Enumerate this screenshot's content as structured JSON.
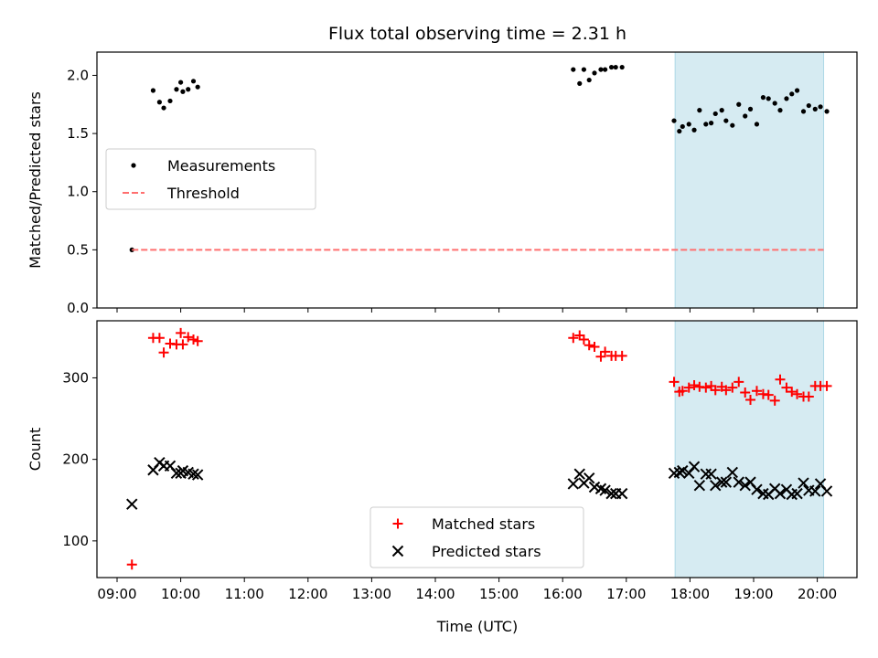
{
  "chart_data": {
    "title": "Flux total observing time = 2.31 h",
    "xlabel": "Time (UTC)",
    "x_ticks": [
      "09:00",
      "10:00",
      "11:00",
      "12:00",
      "13:00",
      "14:00",
      "15:00",
      "16:00",
      "17:00",
      "18:00",
      "19:00",
      "20:00"
    ],
    "shaded_span": {
      "start": "17:46",
      "end": "20:06",
      "color": "#add8e6"
    },
    "panels": [
      {
        "type": "scatter",
        "ylabel": "Matched/Predicted stars",
        "ylim": [
          0,
          2.2
        ],
        "y_ticks": [
          "0.0",
          "0.5",
          "1.0",
          "1.5",
          "2.0"
        ],
        "legend_position": "center-left",
        "series": [
          {
            "name": "Measurements",
            "marker": "dot",
            "color": "#000000",
            "x": [
              "09:14",
              "09:34",
              "09:40",
              "09:44",
              "09:50",
              "09:56",
              "10:00",
              "10:02",
              "10:07",
              "10:12",
              "10:16",
              "16:10",
              "16:16",
              "16:20",
              "16:25",
              "16:30",
              "16:36",
              "16:40",
              "16:46",
              "16:50",
              "16:56",
              "17:45",
              "17:50",
              "17:53",
              "17:59",
              "18:04",
              "18:09",
              "18:15",
              "18:20",
              "18:24",
              "18:30",
              "18:34",
              "18:40",
              "18:46",
              "18:52",
              "18:57",
              "19:03",
              "19:09",
              "19:14",
              "19:20",
              "19:25",
              "19:31",
              "19:36",
              "19:41",
              "19:47",
              "19:52",
              "19:58",
              "20:03",
              "20:09"
            ],
            "y": [
              0.5,
              1.87,
              1.77,
              1.72,
              1.78,
              1.88,
              1.94,
              1.86,
              1.88,
              1.95,
              1.9,
              2.05,
              1.93,
              2.05,
              1.96,
              2.02,
              2.05,
              2.05,
              2.07,
              2.07,
              2.07,
              1.61,
              1.52,
              1.56,
              1.58,
              1.53,
              1.7,
              1.58,
              1.59,
              1.67,
              1.7,
              1.61,
              1.57,
              1.75,
              1.65,
              1.71,
              1.58,
              1.81,
              1.8,
              1.76,
              1.7,
              1.8,
              1.84,
              1.87,
              1.69,
              1.74,
              1.71,
              1.73,
              1.69
            ]
          },
          {
            "name": "Threshold",
            "marker": "dashed-line",
            "color": "#ff6f6f",
            "x": [
              "09:14",
              "20:06"
            ],
            "y": [
              0.5,
              0.5
            ]
          }
        ]
      },
      {
        "type": "scatter",
        "ylabel": "Count",
        "ylim": [
          55,
          370
        ],
        "y_ticks": [
          "100",
          "200",
          "300"
        ],
        "legend_position": "lower-center",
        "series": [
          {
            "name": "Matched stars",
            "marker": "plus",
            "color": "#ff0000",
            "x": [
              "09:14",
              "09:34",
              "09:40",
              "09:44",
              "09:50",
              "09:56",
              "10:00",
              "10:02",
              "10:07",
              "10:12",
              "10:16",
              "16:10",
              "16:16",
              "16:20",
              "16:25",
              "16:30",
              "16:36",
              "16:40",
              "16:46",
              "16:50",
              "16:56",
              "17:45",
              "17:50",
              "17:53",
              "17:59",
              "18:04",
              "18:09",
              "18:15",
              "18:20",
              "18:24",
              "18:30",
              "18:34",
              "18:40",
              "18:46",
              "18:52",
              "18:57",
              "19:03",
              "19:09",
              "19:14",
              "19:20",
              "19:25",
              "19:31",
              "19:36",
              "19:41",
              "19:47",
              "19:52",
              "19:58",
              "20:03",
              "20:09"
            ],
            "y": [
              71,
              349,
              349,
              331,
              342,
              341,
              355,
              341,
              350,
              347,
              345,
              349,
              352,
              347,
              340,
              338,
              326,
              332,
              327,
              327,
              327,
              295,
              283,
              284,
              288,
              291,
              289,
              288,
              290,
              285,
              289,
              285,
              288,
              295,
              282,
              273,
              284,
              280,
              279,
              272,
              298,
              288,
              283,
              280,
              277,
              277,
              290,
              290,
              290
            ]
          },
          {
            "name": "Predicted stars",
            "marker": "x",
            "color": "#000000",
            "x": [
              "09:14",
              "09:34",
              "09:40",
              "09:44",
              "09:50",
              "09:56",
              "10:00",
              "10:02",
              "10:07",
              "10:12",
              "10:16",
              "16:10",
              "16:16",
              "16:20",
              "16:25",
              "16:30",
              "16:36",
              "16:40",
              "16:46",
              "16:50",
              "16:56",
              "17:45",
              "17:50",
              "17:53",
              "17:59",
              "18:04",
              "18:09",
              "18:15",
              "18:20",
              "18:24",
              "18:30",
              "18:34",
              "18:40",
              "18:46",
              "18:52",
              "18:57",
              "19:03",
              "19:09",
              "19:14",
              "19:20",
              "19:25",
              "19:31",
              "19:36",
              "19:41",
              "19:47",
              "19:52",
              "19:58",
              "20:03",
              "20:09"
            ],
            "y": [
              145,
              187,
              196,
              192,
              192,
              183,
              183,
              186,
              184,
              182,
              181,
              170,
              182,
              171,
              177,
              166,
              164,
              162,
              158,
              158,
              158,
              183,
              184,
              186,
              183,
              191,
              168,
              182,
              182,
              168,
              172,
              172,
              184,
              172,
              168,
              172,
              163,
              158,
              157,
              164,
              158,
              163,
              157,
              158,
              171,
              162,
              161,
              170,
              161
            ]
          }
        ]
      }
    ]
  }
}
